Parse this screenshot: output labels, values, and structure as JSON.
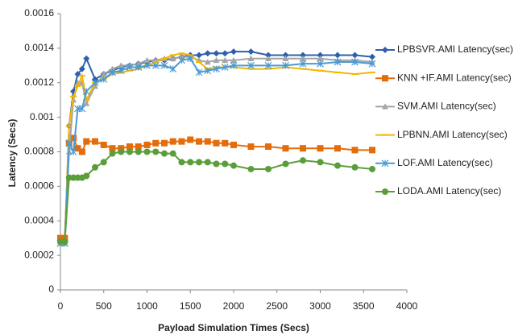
{
  "chart_data": {
    "type": "line",
    "x_label": "Payload Simulation Times (Secs)",
    "y_label": "Latency  (Secs)",
    "xlim": [
      0,
      4000
    ],
    "xticks": [
      0,
      500,
      1000,
      1500,
      2000,
      2500,
      3000,
      3500,
      4000
    ],
    "ylim": [
      0,
      0.0016
    ],
    "yticks": [
      0,
      0.0002,
      0.0004,
      0.0006,
      0.0008,
      0.001,
      0.0012,
      0.0014,
      0.0016
    ],
    "x": [
      0,
      50,
      100,
      150,
      200,
      250,
      300,
      400,
      500,
      600,
      700,
      800,
      900,
      1000,
      1100,
      1200,
      1300,
      1400,
      1500,
      1600,
      1700,
      1800,
      1900,
      2000,
      2200,
      2400,
      2600,
      2800,
      3000,
      3200,
      3400,
      3600
    ],
    "series": [
      {
        "name": "LPBSVR.AMI Latency(sec)",
        "color": "#2f5faf",
        "marker": "diamond",
        "values": [
          0.00028,
          0.00028,
          0.00095,
          0.00115,
          0.00125,
          0.00128,
          0.00134,
          0.00122,
          0.00125,
          0.00127,
          0.00129,
          0.0013,
          0.00131,
          0.00132,
          0.00133,
          0.00133,
          0.00134,
          0.00135,
          0.00136,
          0.00136,
          0.00137,
          0.00137,
          0.00137,
          0.00138,
          0.00138,
          0.00136,
          0.00136,
          0.00136,
          0.00136,
          0.00136,
          0.00136,
          0.00135
        ]
      },
      {
        "name": "KNN +IF.AMI Latency(sec)",
        "color": "#e46c0a",
        "marker": "square",
        "values": [
          0.0003,
          0.0003,
          0.00085,
          0.00088,
          0.00082,
          0.0008,
          0.00086,
          0.00086,
          0.00084,
          0.00082,
          0.00082,
          0.00083,
          0.00083,
          0.00084,
          0.00085,
          0.00085,
          0.00086,
          0.00086,
          0.00087,
          0.00086,
          0.00086,
          0.00085,
          0.00085,
          0.00084,
          0.00083,
          0.00083,
          0.00082,
          0.00082,
          0.00082,
          0.00082,
          0.00081,
          0.00081
        ]
      },
      {
        "name": "SVM.AMI Latency(sec)",
        "color": "#a5a5a5",
        "marker": "triangle",
        "values": [
          0.00027,
          0.00027,
          0.0008,
          0.0011,
          0.0012,
          0.0012,
          0.00108,
          0.00118,
          0.00125,
          0.00128,
          0.0013,
          0.0013,
          0.00131,
          0.00133,
          0.00133,
          0.00134,
          0.00134,
          0.00135,
          0.00135,
          0.00133,
          0.00132,
          0.00133,
          0.00133,
          0.00133,
          0.00134,
          0.00134,
          0.00134,
          0.00134,
          0.00134,
          0.00133,
          0.00133,
          0.00132
        ]
      },
      {
        "name": "LPBNN.AMI Latency(sec)",
        "color": "#f2b800",
        "marker": "dash",
        "values": [
          0.00027,
          0.00027,
          0.00095,
          0.00112,
          0.00118,
          0.00124,
          0.0011,
          0.0012,
          0.00122,
          0.00125,
          0.00126,
          0.00127,
          0.00128,
          0.0013,
          0.00132,
          0.00134,
          0.00136,
          0.00137,
          0.00136,
          0.00132,
          0.00128,
          0.00129,
          0.00129,
          0.00129,
          0.00128,
          0.00128,
          0.00129,
          0.00128,
          0.00127,
          0.00126,
          0.00125,
          0.00126
        ]
      },
      {
        "name": "LOF.AMI Latency(sec)",
        "color": "#4a9ad4",
        "marker": "cross",
        "values": [
          0.00027,
          0.00027,
          0.00085,
          0.0008,
          0.00105,
          0.00105,
          0.00115,
          0.0012,
          0.00122,
          0.00126,
          0.00127,
          0.00129,
          0.00129,
          0.0013,
          0.0013,
          0.0013,
          0.00128,
          0.00133,
          0.00134,
          0.00126,
          0.00127,
          0.00128,
          0.00129,
          0.0013,
          0.0013,
          0.0013,
          0.0013,
          0.00131,
          0.00131,
          0.00132,
          0.00132,
          0.00131
        ]
      },
      {
        "name": "LODA.AMI Latency(sec)",
        "color": "#5a9e3a",
        "marker": "circle",
        "values": [
          0.00028,
          0.00028,
          0.00065,
          0.00065,
          0.00065,
          0.00065,
          0.00066,
          0.00071,
          0.00074,
          0.00079,
          0.0008,
          0.0008,
          0.0008,
          0.0008,
          0.0008,
          0.00079,
          0.00079,
          0.00074,
          0.00074,
          0.00074,
          0.00074,
          0.00073,
          0.00073,
          0.00072,
          0.0007,
          0.0007,
          0.00073,
          0.00075,
          0.00074,
          0.00072,
          0.00071,
          0.0007
        ]
      }
    ]
  }
}
